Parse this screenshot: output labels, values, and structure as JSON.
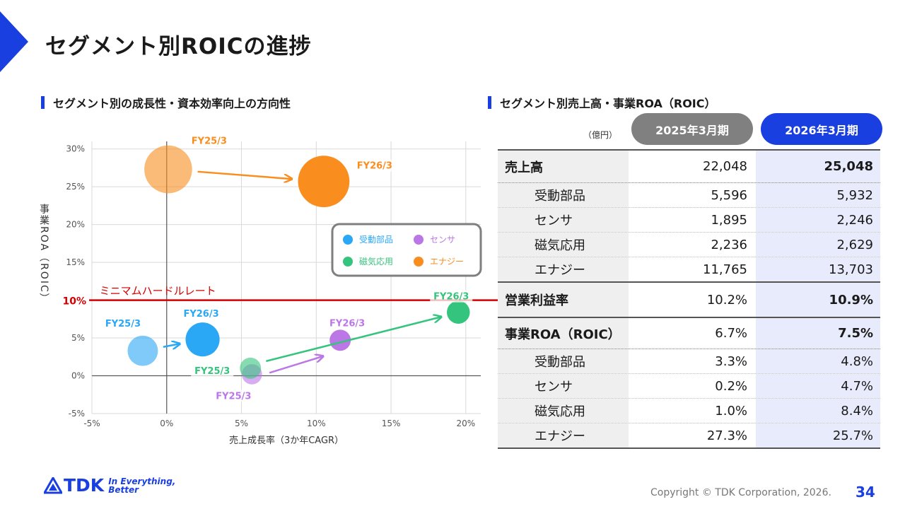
{
  "page": {
    "title": "セグメント別ROICの進捗",
    "left_section_title": "セグメント別の成長性・資本効率向上の方向性",
    "right_section_title": "セグメント別売上高・事業ROA（ROIC）",
    "copyright": "Copyright © TDK Corporation, 2026.",
    "page_number": "34",
    "logo_text": "TDK",
    "logo_tagline_1": "In Everything,",
    "logo_tagline_2": "Better",
    "brand_color": "#1a3fe0"
  },
  "chart_data": {
    "type": "scatter",
    "xlabel": "売上成長率（3か年CAGR）",
    "ylabel": "事業ROA（ROIC）",
    "xlim": [
      -5,
      21
    ],
    "ylim": [
      -5,
      31
    ],
    "x_ticks": [
      -5,
      0,
      5,
      10,
      15,
      20
    ],
    "y_ticks": [
      -5,
      0,
      5,
      10,
      15,
      20,
      25,
      30
    ],
    "x_tick_labels": [
      "-5%",
      "0%",
      "5%",
      "10%",
      "15%",
      "20%"
    ],
    "y_tick_labels": [
      "-5%",
      "0%",
      "5%",
      "10%",
      "15%",
      "20%",
      "25%",
      "30%"
    ],
    "grid": true,
    "hurdle": {
      "value": 10,
      "label": "ミニマムハードルレート",
      "tick_label": "10%",
      "color": "#d40000"
    },
    "legend_position": "inside-right",
    "series": [
      {
        "name": "受動部品",
        "color": "#2aa7f5",
        "points": [
          {
            "label": "FY25/3",
            "x": -1.6,
            "y": 3.3,
            "size": 3.3,
            "faded": true
          },
          {
            "label": "FY26/3",
            "x": 2.4,
            "y": 4.8,
            "size": 3.7,
            "faded": false
          }
        ]
      },
      {
        "name": "センサ",
        "color": "#bb77e6",
        "points": [
          {
            "label": "FY25/3",
            "x": 5.7,
            "y": 0.2,
            "size": 2.2,
            "faded": true
          },
          {
            "label": "FY26/3",
            "x": 11.6,
            "y": 4.7,
            "size": 2.3,
            "faded": false
          }
        ]
      },
      {
        "name": "磁気応用",
        "color": "#35c47d",
        "points": [
          {
            "label": "FY25/3",
            "x": 5.6,
            "y": 1.0,
            "size": 2.3,
            "faded": true
          },
          {
            "label": "FY26/3",
            "x": 19.5,
            "y": 8.4,
            "size": 2.5,
            "faded": false
          }
        ]
      },
      {
        "name": "エナジー",
        "color": "#f98d1e",
        "points": [
          {
            "label": "FY25/3",
            "x": 0.1,
            "y": 27.3,
            "size": 5.2,
            "faded": true
          },
          {
            "label": "FY26/3",
            "x": 10.5,
            "y": 25.7,
            "size": 5.6,
            "faded": false
          }
        ]
      }
    ]
  },
  "table": {
    "unit": "（億円）",
    "headers": [
      "2025年3月期",
      "2026年3月期"
    ],
    "rows": [
      {
        "label": "売上高",
        "v1": "22,048",
        "v2": "25,048"
      },
      {
        "label": "受動部品",
        "v1": "5,596",
        "v2": "5,932"
      },
      {
        "label": "センサ",
        "v1": "1,895",
        "v2": "2,246"
      },
      {
        "label": "磁気応用",
        "v1": "2,236",
        "v2": "2,629"
      },
      {
        "label": "エナジー",
        "v1": "11,765",
        "v2": "13,703"
      },
      {
        "label": "営業利益率",
        "v1": "10.2%",
        "v2": "10.9%"
      },
      {
        "label": "事業ROA（ROIC）",
        "v1": "6.7%",
        "v2": "7.5%"
      },
      {
        "label": "受動部品",
        "v1": "3.3%",
        "v2": "4.8%"
      },
      {
        "label": "センサ",
        "v1": "0.2%",
        "v2": "4.7%"
      },
      {
        "label": "磁気応用",
        "v1": "1.0%",
        "v2": "8.4%"
      },
      {
        "label": "エナジー",
        "v1": "27.3%",
        "v2": "25.7%"
      }
    ]
  }
}
